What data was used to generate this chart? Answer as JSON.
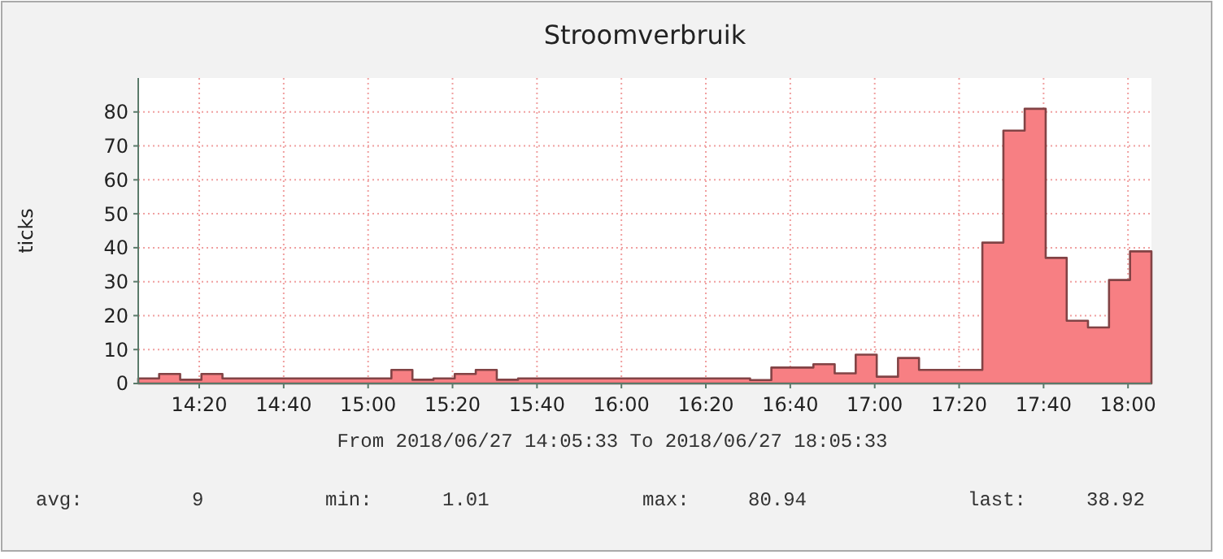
{
  "chart_data": {
    "type": "area",
    "title": "Stroomverbruik",
    "xlabel": "From 2018/06/27 14:05:33 To 2018/06/27 18:05:33",
    "ylabel": "ticks",
    "x": [
      14.0925,
      14.175,
      14.258,
      14.342,
      14.425,
      15.092,
      15.175,
      15.258,
      15.342,
      15.425,
      15.508,
      15.592,
      16.508,
      16.592,
      16.758,
      16.842,
      16.925,
      17.008,
      17.092,
      17.175,
      17.425,
      17.508,
      17.592,
      17.675,
      17.758,
      17.842,
      17.925,
      18.008,
      18.0925
    ],
    "series": [
      {
        "color": "#f77f83",
        "values": [
          1.5,
          2.8,
          1.1,
          2.8,
          1.5,
          4,
          1.1,
          1.5,
          2.8,
          4,
          1.1,
          1.5,
          1.01,
          4.7,
          5.7,
          3,
          8.5,
          2,
          7.5,
          4,
          41.5,
          74.5,
          80.94,
          37,
          18.5,
          16.5,
          30.5,
          38.92,
          38.92
        ]
      }
    ],
    "xlim": [
      14.0925,
      18.0925
    ],
    "xticks": [
      {
        "value": 14.3333,
        "label": "14:20"
      },
      {
        "value": 14.6667,
        "label": "14:40"
      },
      {
        "value": 15,
        "label": "15:00"
      },
      {
        "value": 15.3333,
        "label": "15:20"
      },
      {
        "value": 15.6667,
        "label": "15:40"
      },
      {
        "value": 16,
        "label": "16:00"
      },
      {
        "value": 16.3333,
        "label": "16:20"
      },
      {
        "value": 16.6667,
        "label": "16:40"
      },
      {
        "value": 17,
        "label": "17:00"
      },
      {
        "value": 17.3333,
        "label": "17:20"
      },
      {
        "value": 17.6667,
        "label": "17:40"
      },
      {
        "value": 18,
        "label": "18:00"
      }
    ],
    "ylim": [
      0,
      90
    ],
    "yticks": [
      0,
      10,
      20,
      30,
      40,
      50,
      60,
      70,
      80
    ],
    "grid": true,
    "annotations": [
      "avg:",
      "9",
      "min:",
      "1.01",
      "max:",
      "80.94",
      "last:",
      "38.92"
    ]
  }
}
